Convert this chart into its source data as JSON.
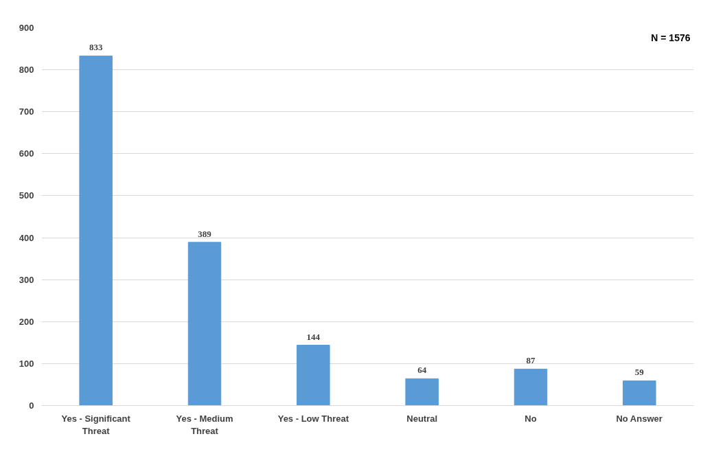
{
  "chart_data": {
    "type": "bar",
    "categories": [
      "Yes - Significant Threat",
      "Yes - Medium Threat",
      "Yes - Low Threat",
      "Neutral",
      "No",
      "No Answer"
    ],
    "values": [
      833,
      389,
      144,
      64,
      87,
      59
    ],
    "color": "#5b9bd5",
    "ylim": [
      0,
      900
    ],
    "yticks": [
      0,
      100,
      200,
      300,
      400,
      500,
      600,
      700,
      800,
      900
    ],
    "grid": "y",
    "data_labels": true,
    "annotations": [
      "N = 1576"
    ]
  }
}
